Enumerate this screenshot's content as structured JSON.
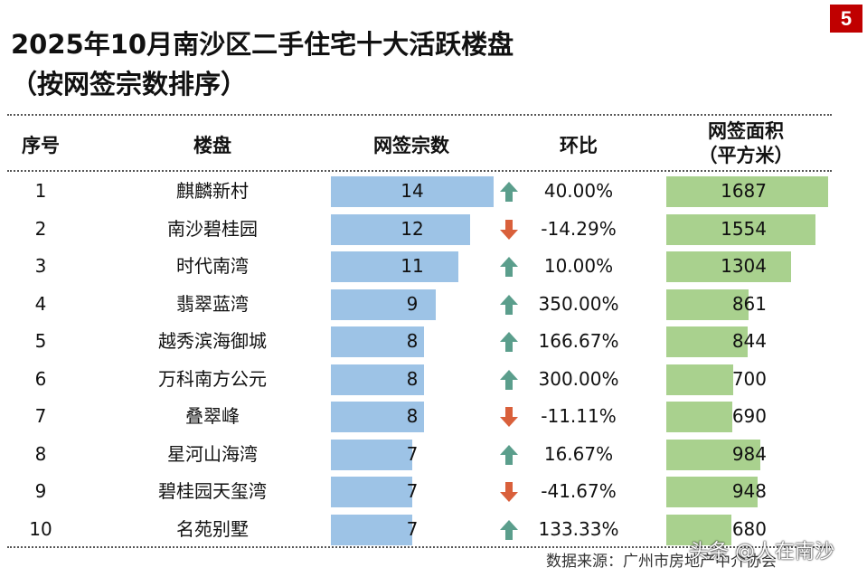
{
  "page_badge": "5",
  "title_line1": "2025年10月南沙区二手住宅十大活跃楼盘",
  "title_line2": "（按网签宗数排序）",
  "headers": {
    "rank": "序号",
    "name": "楼盘",
    "count": "网签宗数",
    "mom": "环比",
    "area_l1": "网签面积",
    "area_l2": "（平方米）"
  },
  "source": "数据来源：广州市房地产中介协会",
  "watermark": "头条 @人在南沙",
  "colors": {
    "count_bar": "#9dc3e6",
    "area_bar": "#a9d18e",
    "up_arrow": "#5b9e8c",
    "down_arrow": "#d9603b",
    "badge": "#c00000"
  },
  "chart_data": {
    "type": "table",
    "columns": [
      "序号",
      "楼盘",
      "网签宗数",
      "环比",
      "网签面积（平方米）"
    ],
    "rows": [
      {
        "rank": "1",
        "name": "麒麟新村",
        "count": 14,
        "mom": "40.00%",
        "trend": "up",
        "area": 1687
      },
      {
        "rank": "2",
        "name": "南沙碧桂园",
        "count": 12,
        "mom": "-14.29%",
        "trend": "down",
        "area": 1554
      },
      {
        "rank": "3",
        "name": "时代南湾",
        "count": 11,
        "mom": "10.00%",
        "trend": "up",
        "area": 1304
      },
      {
        "rank": "4",
        "name": "翡翠蓝湾",
        "count": 9,
        "mom": "350.00%",
        "trend": "up",
        "area": 861
      },
      {
        "rank": "5",
        "name": "越秀滨海御城",
        "count": 8,
        "mom": "166.67%",
        "trend": "up",
        "area": 844
      },
      {
        "rank": "6",
        "name": "万科南方公元",
        "count": 8,
        "mom": "300.00%",
        "trend": "up",
        "area": 700
      },
      {
        "rank": "7",
        "name": "叠翠峰",
        "count": 8,
        "mom": "-11.11%",
        "trend": "down",
        "area": 690
      },
      {
        "rank": "8",
        "name": "星河山海湾",
        "count": 7,
        "mom": "16.67%",
        "trend": "up",
        "area": 984
      },
      {
        "rank": "9",
        "name": "碧桂园天玺湾",
        "count": 7,
        "mom": "-41.67%",
        "trend": "down",
        "area": 948
      },
      {
        "rank": "10",
        "name": "名苑别墅",
        "count": 7,
        "mom": "133.33%",
        "trend": "up",
        "area": 680
      }
    ]
  }
}
